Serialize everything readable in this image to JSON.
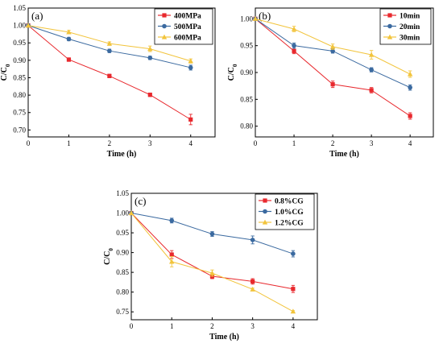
{
  "chart_data": [
    {
      "type": "line",
      "panel_label": "(a)",
      "xlabel": "Time (h)",
      "ylabel": "C/C",
      "ylabel_sub": "0",
      "x": [
        0,
        1,
        2,
        3,
        4
      ],
      "xlim": [
        0,
        4.6
      ],
      "ylim": [
        0.68,
        1.05
      ],
      "xticks": [
        "0",
        "1",
        "2",
        "3",
        "4"
      ],
      "yticks": [
        "0.70",
        "0.75",
        "0.80",
        "0.85",
        "0.90",
        "0.95",
        "1.00",
        "1.05"
      ],
      "legend_position": "top-right",
      "series": [
        {
          "name": "400MPa",
          "color": "#e8282d",
          "marker": "square",
          "values": [
            1.0,
            0.902,
            0.855,
            0.801,
            0.73
          ],
          "errors": [
            0,
            0.005,
            0.005,
            0.005,
            0.015
          ]
        },
        {
          "name": "500MPa",
          "color": "#3b6aa0",
          "marker": "circle",
          "values": [
            1.0,
            0.961,
            0.927,
            0.907,
            0.879
          ],
          "errors": [
            0,
            0.005,
            0.005,
            0.005,
            0.007
          ]
        },
        {
          "name": "600MPa",
          "color": "#f2c43c",
          "marker": "triangle",
          "values": [
            1.0,
            0.981,
            0.948,
            0.933,
            0.898
          ],
          "errors": [
            0,
            0.005,
            0.005,
            0.008,
            0.006
          ]
        }
      ]
    },
    {
      "type": "line",
      "panel_label": "(b)",
      "xlabel": "Time (h)",
      "ylabel": "C/C",
      "ylabel_sub": "0",
      "x": [
        0,
        1,
        2,
        3,
        4
      ],
      "xlim": [
        0,
        4.6
      ],
      "ylim": [
        0.78,
        1.02
      ],
      "xticks": [
        "0",
        "1",
        "2",
        "3",
        "4"
      ],
      "yticks": [
        "0.80",
        "0.85",
        "0.90",
        "0.95",
        "1.00"
      ],
      "legend_position": "top-right",
      "series": [
        {
          "name": "10min",
          "color": "#e8282d",
          "marker": "square",
          "values": [
            1.0,
            0.94,
            0.878,
            0.867,
            0.819
          ],
          "errors": [
            0,
            0.005,
            0.006,
            0.005,
            0.006
          ]
        },
        {
          "name": "20min",
          "color": "#3b6aa0",
          "marker": "circle",
          "values": [
            1.0,
            0.95,
            0.94,
            0.905,
            0.872
          ],
          "errors": [
            0,
            0.005,
            0.004,
            0.004,
            0.005
          ]
        },
        {
          "name": "30min",
          "color": "#f2c43c",
          "marker": "triangle",
          "values": [
            1.0,
            0.981,
            0.948,
            0.933,
            0.897
          ],
          "errors": [
            0,
            0.005,
            0.005,
            0.008,
            0.006
          ]
        }
      ]
    },
    {
      "type": "line",
      "panel_label": "(c)",
      "xlabel": "Time (h)",
      "ylabel": "C/C",
      "ylabel_sub": "0",
      "x": [
        0,
        1,
        2,
        3,
        4
      ],
      "xlim": [
        0,
        4.6
      ],
      "ylim": [
        0.73,
        1.05
      ],
      "xticks": [
        "0",
        "1",
        "2",
        "3",
        "4"
      ],
      "yticks": [
        "0.75",
        "0.80",
        "0.85",
        "0.90",
        "0.95",
        "1.00",
        "1.05"
      ],
      "legend_position": "top-right",
      "series": [
        {
          "name": "0.8%CG",
          "color": "#e8282d",
          "marker": "square",
          "values": [
            1.0,
            0.895,
            0.84,
            0.827,
            0.808
          ],
          "errors": [
            0,
            0.01,
            0.006,
            0.007,
            0.009
          ]
        },
        {
          "name": "1.0%CG",
          "color": "#3b6aa0",
          "marker": "circle",
          "values": [
            1.0,
            0.981,
            0.947,
            0.932,
            0.897
          ],
          "errors": [
            0,
            0.006,
            0.006,
            0.01,
            0.008
          ]
        },
        {
          "name": "1.2%CG",
          "color": "#f2c43c",
          "marker": "triangle",
          "values": [
            1.0,
            0.877,
            0.848,
            0.807,
            0.751
          ],
          "errors": [
            0,
            0.013,
            0.008,
            0.003,
            0.002
          ]
        }
      ]
    }
  ]
}
